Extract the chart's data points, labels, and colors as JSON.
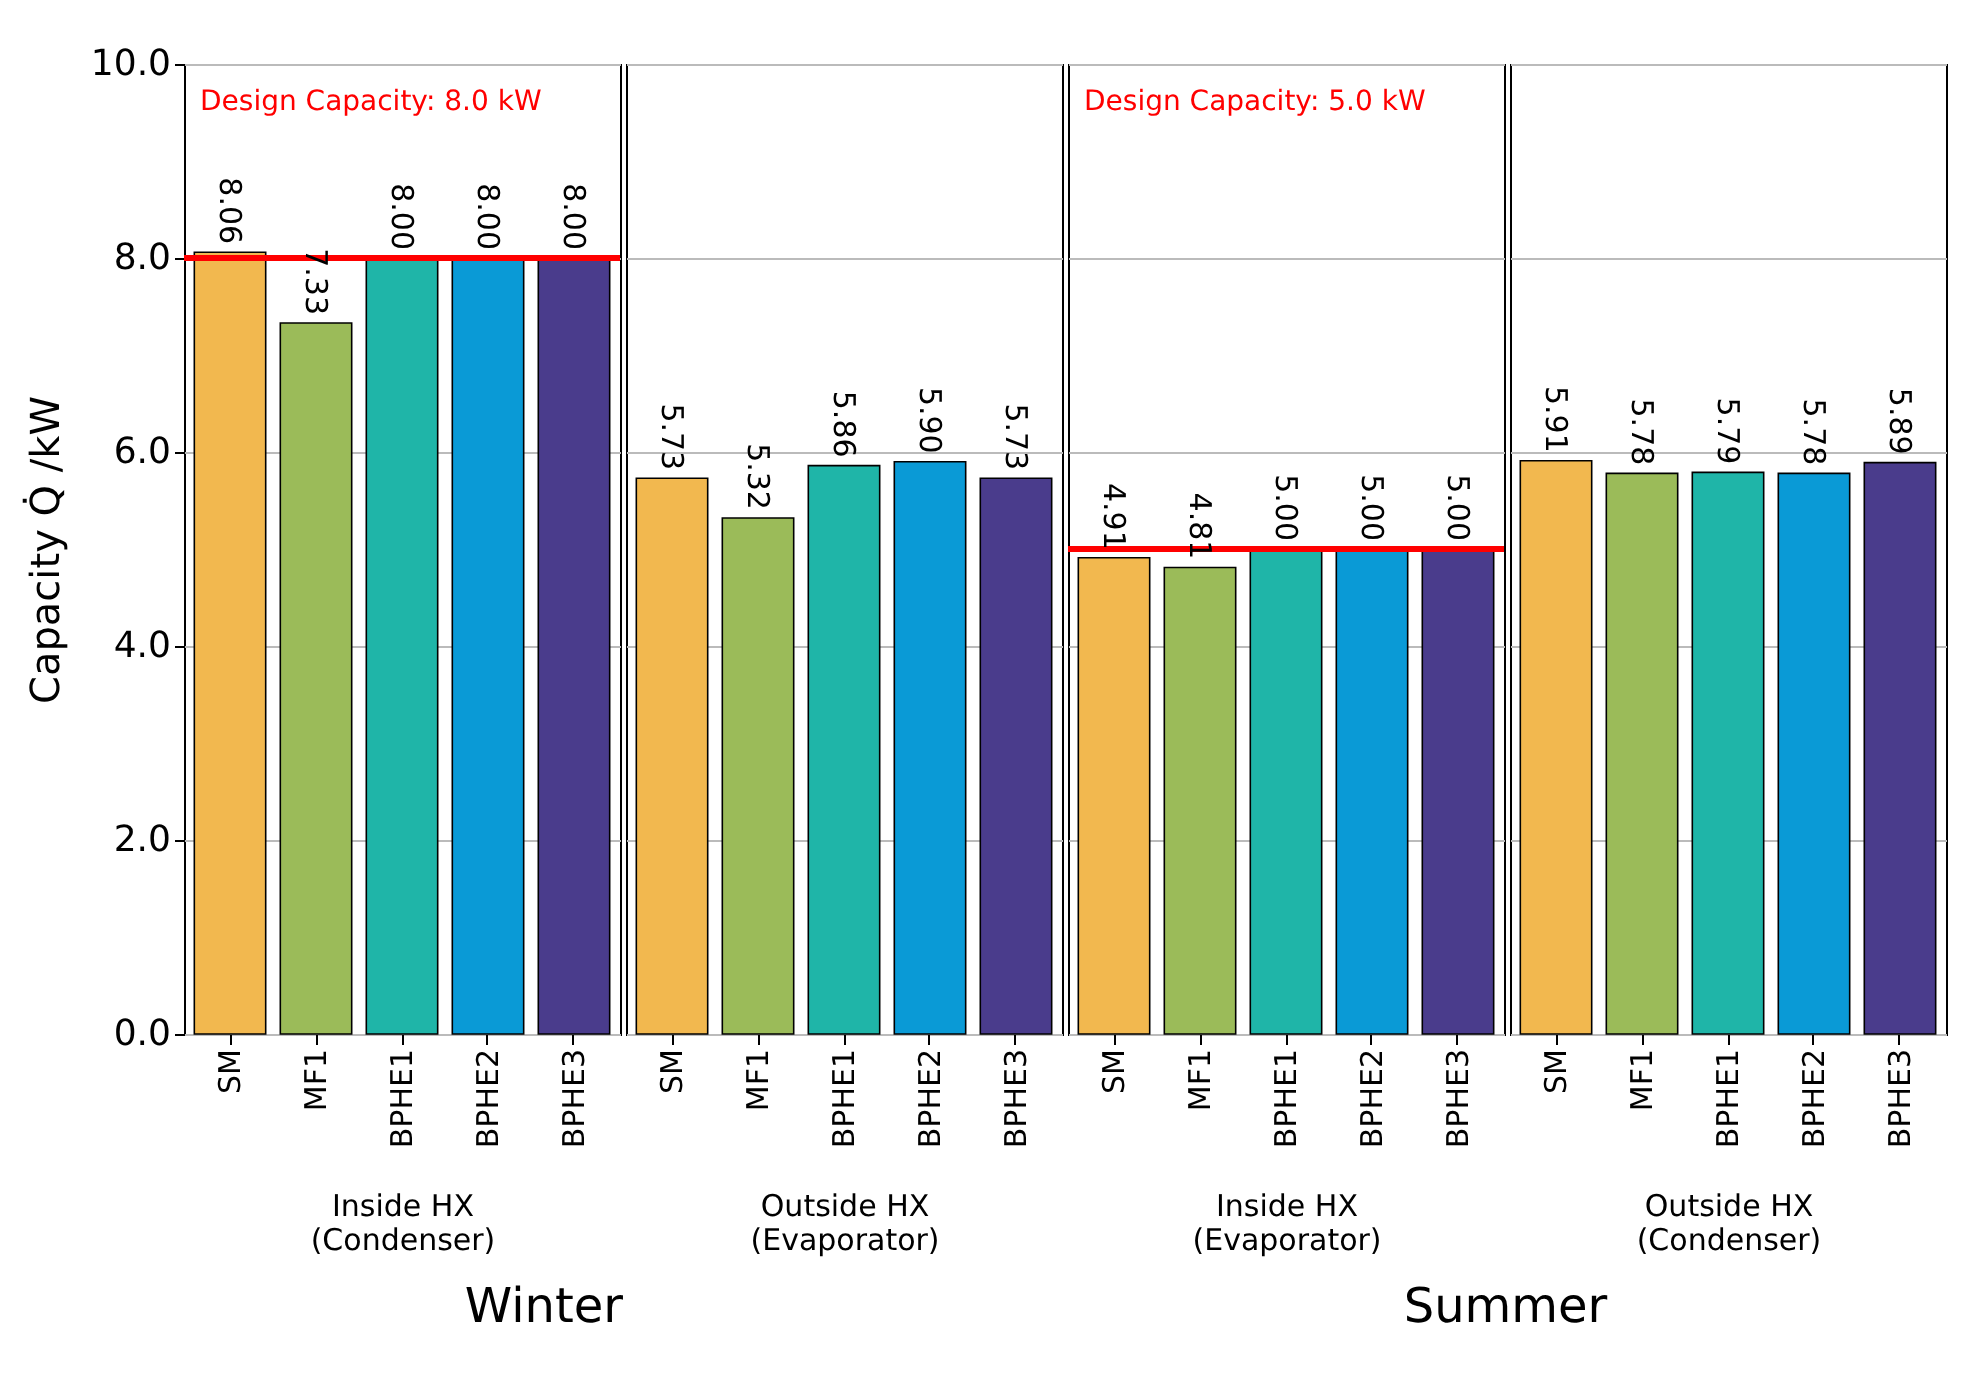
{
  "chart_data": [
    {
      "type": "bar",
      "categories": [
        "SM",
        "MF1",
        "BPHE1",
        "BPHE2",
        "BPHE3"
      ],
      "values": [
        8.06,
        7.33,
        8.0,
        8.0,
        8.0
      ],
      "value_labels": [
        "8.06",
        "7.33",
        "8.00",
        "8.00",
        "8.00"
      ],
      "colors": [
        "#f2b84f",
        "#9bbb59",
        "#1fb5a8",
        "#0a9ad6",
        "#4a3c8c"
      ],
      "ylabel": "Capacity Q̇ /kW",
      "xlabel": "Inside HX\n(Condenser)",
      "annotations": [
        "Winter"
      ],
      "ylim": [
        0,
        10
      ],
      "yticks": [
        {
          "value": 0,
          "label": "0.0"
        },
        {
          "value": 2,
          "label": "2.0"
        },
        {
          "value": 4,
          "label": "4.0"
        },
        {
          "value": 6,
          "label": "6.0"
        },
        {
          "value": 8,
          "label": "8.0"
        },
        {
          "value": 10,
          "label": "10.0"
        }
      ],
      "grid": "y",
      "ref_lines": [
        {
          "axis": "y",
          "value": 8.0,
          "label": "Design Capacity: 8.0 kW",
          "color": "#ff0000"
        }
      ]
    },
    {
      "type": "bar",
      "categories": [
        "SM",
        "MF1",
        "BPHE1",
        "BPHE2",
        "BPHE3"
      ],
      "values": [
        5.73,
        5.32,
        5.86,
        5.9,
        5.73
      ],
      "value_labels": [
        "5.73",
        "5.32",
        "5.86",
        "5.90",
        "5.73"
      ],
      "colors": [
        "#f2b84f",
        "#9bbb59",
        "#1fb5a8",
        "#0a9ad6",
        "#4a3c8c"
      ],
      "xlabel": "Outside HX\n(Evaporator)",
      "ylim": [
        0,
        10
      ],
      "yticks": [
        0,
        2,
        4,
        6,
        8,
        10
      ],
      "grid": "y",
      "tick_labels": "x"
    },
    {
      "type": "bar",
      "categories": [
        "SM",
        "MF1",
        "BPHE1",
        "BPHE2",
        "BPHE3"
      ],
      "values": [
        4.91,
        4.81,
        5.0,
        5.0,
        5.0
      ],
      "value_labels": [
        "4.91",
        "4.81",
        "5.00",
        "5.00",
        "5.00"
      ],
      "colors": [
        "#f2b84f",
        "#9bbb59",
        "#1fb5a8",
        "#0a9ad6",
        "#4a3c8c"
      ],
      "xlabel": "Inside HX\n(Evaporator)",
      "annotations": [
        "Summer"
      ],
      "ylim": [
        0,
        10
      ],
      "yticks": [
        0,
        2,
        4,
        6,
        8,
        10
      ],
      "grid": "y",
      "tick_labels": "x",
      "ref_lines": [
        {
          "axis": "y",
          "value": 5.0,
          "label": "Design Capacity: 5.0 kW",
          "color": "#ff0000"
        }
      ]
    },
    {
      "type": "bar",
      "categories": [
        "SM",
        "MF1",
        "BPHE1",
        "BPHE2",
        "BPHE3"
      ],
      "values": [
        5.91,
        5.78,
        5.79,
        5.78,
        5.89
      ],
      "value_labels": [
        "5.91",
        "5.78",
        "5.79",
        "5.78",
        "5.89"
      ],
      "colors": [
        "#f2b84f",
        "#9bbb59",
        "#1fb5a8",
        "#0a9ad6",
        "#4a3c8c"
      ],
      "xlabel": "Outside HX\n(Condenser)",
      "ylim": [
        0,
        10
      ],
      "yticks": [
        0,
        2,
        4,
        6,
        8,
        10
      ],
      "grid": "y",
      "tick_labels": "x"
    }
  ]
}
